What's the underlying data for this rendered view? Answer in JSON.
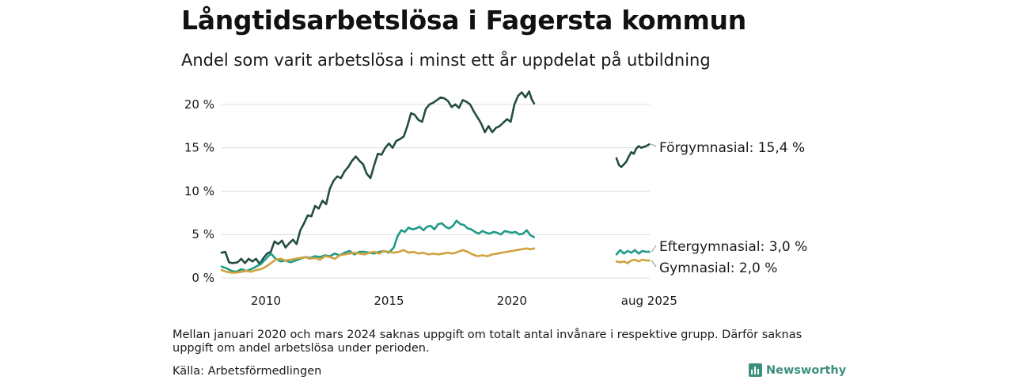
{
  "title": "Långtidsarbetslösa i Fagersta kommun",
  "subtitle": "Andel som varit arbetslösa i minst ett år uppdelat på utbildning",
  "note": "Mellan januari 2020 och mars 2024 saknas uppgift om totalt antal invånare i respektive grupp. Därför saknas uppgift om andel arbetslösa under perioden.",
  "source": "Källa: Arbetsförmedlingen",
  "brand": "Newsworthy",
  "chart_data": {
    "type": "line",
    "title": "Långtidsarbetslösa i Fagersta kommun",
    "subtitle": "Andel som varit arbetslösa i minst ett år uppdelat på utbildning",
    "x_ticks": [
      {
        "label": "2010",
        "t": 2010.0
      },
      {
        "label": "2015",
        "t": 2015.0
      },
      {
        "label": "2020",
        "t": 2020.0
      },
      {
        "label": "aug 2025",
        "t": 2025.58
      }
    ],
    "y_ticks": [
      0,
      5,
      10,
      15,
      20
    ],
    "y_tick_format": "{v} %",
    "ylim": [
      0,
      22
    ],
    "xlim": [
      2008.2,
      2025.6
    ],
    "grid": true,
    "gap": [
      2020.9,
      2024.25
    ],
    "series": [
      {
        "name": "Förgymnasial",
        "label": "Förgymnasial: 15,4 %",
        "color": "#234d43",
        "points": [
          [
            2008.2,
            2.9
          ],
          [
            2008.35,
            3.0
          ],
          [
            2008.5,
            1.8
          ],
          [
            2008.65,
            1.7
          ],
          [
            2008.85,
            1.8
          ],
          [
            2009.0,
            2.2
          ],
          [
            2009.15,
            1.7
          ],
          [
            2009.3,
            2.2
          ],
          [
            2009.45,
            1.9
          ],
          [
            2009.6,
            2.2
          ],
          [
            2009.75,
            1.6
          ],
          [
            2009.9,
            2.3
          ],
          [
            2010.05,
            2.8
          ],
          [
            2010.2,
            3.0
          ],
          [
            2010.35,
            4.2
          ],
          [
            2010.5,
            3.9
          ],
          [
            2010.65,
            4.3
          ],
          [
            2010.8,
            3.5
          ],
          [
            2010.95,
            4.0
          ],
          [
            2011.1,
            4.4
          ],
          [
            2011.25,
            3.9
          ],
          [
            2011.4,
            5.5
          ],
          [
            2011.55,
            6.3
          ],
          [
            2011.7,
            7.2
          ],
          [
            2011.85,
            7.1
          ],
          [
            2012.0,
            8.3
          ],
          [
            2012.15,
            8.0
          ],
          [
            2012.3,
            8.9
          ],
          [
            2012.45,
            8.5
          ],
          [
            2012.6,
            10.3
          ],
          [
            2012.75,
            11.2
          ],
          [
            2012.9,
            11.7
          ],
          [
            2013.05,
            11.5
          ],
          [
            2013.2,
            12.3
          ],
          [
            2013.35,
            12.8
          ],
          [
            2013.5,
            13.5
          ],
          [
            2013.65,
            14.0
          ],
          [
            2013.8,
            13.5
          ],
          [
            2013.95,
            13.1
          ],
          [
            2014.1,
            12.0
          ],
          [
            2014.25,
            11.5
          ],
          [
            2014.4,
            13.0
          ],
          [
            2014.55,
            14.3
          ],
          [
            2014.7,
            14.2
          ],
          [
            2014.85,
            15.0
          ],
          [
            2015.0,
            15.5
          ],
          [
            2015.15,
            15.0
          ],
          [
            2015.3,
            15.8
          ],
          [
            2015.45,
            16.0
          ],
          [
            2015.6,
            16.3
          ],
          [
            2015.75,
            17.5
          ],
          [
            2015.9,
            19.0
          ],
          [
            2016.05,
            18.8
          ],
          [
            2016.2,
            18.2
          ],
          [
            2016.35,
            18.0
          ],
          [
            2016.5,
            19.5
          ],
          [
            2016.65,
            20.0
          ],
          [
            2016.8,
            20.2
          ],
          [
            2016.95,
            20.5
          ],
          [
            2017.1,
            20.8
          ],
          [
            2017.25,
            20.7
          ],
          [
            2017.4,
            20.4
          ],
          [
            2017.55,
            19.7
          ],
          [
            2017.7,
            20.0
          ],
          [
            2017.85,
            19.6
          ],
          [
            2018.0,
            20.5
          ],
          [
            2018.15,
            20.3
          ],
          [
            2018.3,
            20.0
          ],
          [
            2018.45,
            19.2
          ],
          [
            2018.6,
            18.5
          ],
          [
            2018.75,
            17.8
          ],
          [
            2018.9,
            16.8
          ],
          [
            2019.05,
            17.5
          ],
          [
            2019.2,
            16.8
          ],
          [
            2019.35,
            17.3
          ],
          [
            2019.5,
            17.5
          ],
          [
            2019.65,
            17.9
          ],
          [
            2019.8,
            18.3
          ],
          [
            2019.95,
            18.0
          ],
          [
            2020.1,
            20.0
          ],
          [
            2020.25,
            21.0
          ],
          [
            2020.4,
            21.4
          ],
          [
            2020.55,
            20.8
          ],
          [
            2020.7,
            21.5
          ],
          [
            2020.8,
            20.6
          ],
          [
            2020.9,
            20.1
          ]
        ],
        "points_after_gap": [
          [
            2024.25,
            13.8
          ],
          [
            2024.35,
            13.0
          ],
          [
            2024.45,
            12.8
          ],
          [
            2024.55,
            13.1
          ],
          [
            2024.65,
            13.4
          ],
          [
            2024.75,
            14.0
          ],
          [
            2024.85,
            14.5
          ],
          [
            2024.95,
            14.3
          ],
          [
            2025.05,
            14.9
          ],
          [
            2025.15,
            15.2
          ],
          [
            2025.25,
            15.0
          ],
          [
            2025.35,
            15.1
          ],
          [
            2025.45,
            15.2
          ],
          [
            2025.58,
            15.4
          ]
        ]
      },
      {
        "name": "Eftergymnasial",
        "label": "Eftergymnasial:  3,0 %",
        "color": "#1f9a86",
        "points": [
          [
            2008.2,
            1.3
          ],
          [
            2008.4,
            1.1
          ],
          [
            2008.6,
            0.8
          ],
          [
            2008.8,
            0.7
          ],
          [
            2009.0,
            1.0
          ],
          [
            2009.2,
            0.8
          ],
          [
            2009.4,
            1.0
          ],
          [
            2009.6,
            1.3
          ],
          [
            2009.8,
            1.6
          ],
          [
            2010.0,
            2.2
          ],
          [
            2010.2,
            2.8
          ],
          [
            2010.4,
            2.2
          ],
          [
            2010.6,
            1.9
          ],
          [
            2010.8,
            2.0
          ],
          [
            2011.0,
            1.8
          ],
          [
            2011.2,
            2.0
          ],
          [
            2011.4,
            2.2
          ],
          [
            2011.6,
            2.4
          ],
          [
            2011.8,
            2.3
          ],
          [
            2012.0,
            2.5
          ],
          [
            2012.2,
            2.4
          ],
          [
            2012.4,
            2.6
          ],
          [
            2012.6,
            2.5
          ],
          [
            2012.8,
            2.8
          ],
          [
            2013.0,
            2.6
          ],
          [
            2013.2,
            2.9
          ],
          [
            2013.4,
            3.1
          ],
          [
            2013.6,
            2.7
          ],
          [
            2013.8,
            3.0
          ],
          [
            2014.0,
            3.0
          ],
          [
            2014.2,
            2.9
          ],
          [
            2014.4,
            2.8
          ],
          [
            2014.6,
            3.0
          ],
          [
            2014.8,
            3.1
          ],
          [
            2015.0,
            2.9
          ],
          [
            2015.2,
            3.5
          ],
          [
            2015.35,
            4.8
          ],
          [
            2015.5,
            5.5
          ],
          [
            2015.65,
            5.3
          ],
          [
            2015.8,
            5.8
          ],
          [
            2015.95,
            5.6
          ],
          [
            2016.1,
            5.7
          ],
          [
            2016.25,
            5.9
          ],
          [
            2016.4,
            5.5
          ],
          [
            2016.55,
            5.9
          ],
          [
            2016.7,
            6.0
          ],
          [
            2016.85,
            5.6
          ],
          [
            2017.0,
            6.2
          ],
          [
            2017.15,
            6.3
          ],
          [
            2017.3,
            5.9
          ],
          [
            2017.45,
            5.7
          ],
          [
            2017.6,
            6.0
          ],
          [
            2017.75,
            6.6
          ],
          [
            2017.9,
            6.2
          ],
          [
            2018.05,
            6.1
          ],
          [
            2018.2,
            5.7
          ],
          [
            2018.35,
            5.6
          ],
          [
            2018.5,
            5.3
          ],
          [
            2018.65,
            5.1
          ],
          [
            2018.8,
            5.4
          ],
          [
            2018.95,
            5.2
          ],
          [
            2019.1,
            5.1
          ],
          [
            2019.25,
            5.3
          ],
          [
            2019.4,
            5.2
          ],
          [
            2019.55,
            5.0
          ],
          [
            2019.7,
            5.4
          ],
          [
            2019.85,
            5.3
          ],
          [
            2020.0,
            5.2
          ],
          [
            2020.15,
            5.3
          ],
          [
            2020.3,
            5.0
          ],
          [
            2020.45,
            5.1
          ],
          [
            2020.6,
            5.5
          ],
          [
            2020.75,
            4.9
          ],
          [
            2020.9,
            4.7
          ]
        ],
        "points_after_gap": [
          [
            2024.25,
            2.7
          ],
          [
            2024.4,
            3.2
          ],
          [
            2024.55,
            2.8
          ],
          [
            2024.7,
            3.1
          ],
          [
            2024.85,
            2.9
          ],
          [
            2025.0,
            3.2
          ],
          [
            2025.15,
            2.8
          ],
          [
            2025.3,
            3.1
          ],
          [
            2025.45,
            3.0
          ],
          [
            2025.58,
            3.0
          ]
        ]
      },
      {
        "name": "Gymnasial",
        "label": "Gymnasial:  2,0 %",
        "color": "#d0a240",
        "points": [
          [
            2008.2,
            0.9
          ],
          [
            2008.4,
            0.7
          ],
          [
            2008.6,
            0.6
          ],
          [
            2008.8,
            0.6
          ],
          [
            2009.0,
            0.7
          ],
          [
            2009.2,
            0.8
          ],
          [
            2009.4,
            0.7
          ],
          [
            2009.6,
            0.9
          ],
          [
            2009.8,
            1.0
          ],
          [
            2010.0,
            1.3
          ],
          [
            2010.2,
            1.7
          ],
          [
            2010.4,
            2.1
          ],
          [
            2010.6,
            2.2
          ],
          [
            2010.8,
            2.0
          ],
          [
            2011.0,
            2.1
          ],
          [
            2011.2,
            2.2
          ],
          [
            2011.4,
            2.3
          ],
          [
            2011.6,
            2.4
          ],
          [
            2011.8,
            2.2
          ],
          [
            2012.0,
            2.3
          ],
          [
            2012.2,
            2.1
          ],
          [
            2012.4,
            2.5
          ],
          [
            2012.6,
            2.4
          ],
          [
            2012.8,
            2.2
          ],
          [
            2013.0,
            2.6
          ],
          [
            2013.2,
            2.7
          ],
          [
            2013.4,
            2.8
          ],
          [
            2013.6,
            2.9
          ],
          [
            2013.8,
            2.8
          ],
          [
            2014.0,
            2.7
          ],
          [
            2014.2,
            2.9
          ],
          [
            2014.4,
            3.0
          ],
          [
            2014.6,
            2.8
          ],
          [
            2014.8,
            3.1
          ],
          [
            2015.0,
            3.0
          ],
          [
            2015.2,
            2.9
          ],
          [
            2015.4,
            3.0
          ],
          [
            2015.6,
            3.2
          ],
          [
            2015.8,
            2.9
          ],
          [
            2016.0,
            3.0
          ],
          [
            2016.2,
            2.8
          ],
          [
            2016.4,
            2.9
          ],
          [
            2016.6,
            2.7
          ],
          [
            2016.8,
            2.8
          ],
          [
            2017.0,
            2.7
          ],
          [
            2017.2,
            2.8
          ],
          [
            2017.4,
            2.9
          ],
          [
            2017.6,
            2.8
          ],
          [
            2017.8,
            3.0
          ],
          [
            2018.0,
            3.2
          ],
          [
            2018.2,
            3.0
          ],
          [
            2018.4,
            2.7
          ],
          [
            2018.6,
            2.5
          ],
          [
            2018.8,
            2.6
          ],
          [
            2019.0,
            2.5
          ],
          [
            2019.2,
            2.7
          ],
          [
            2019.4,
            2.8
          ],
          [
            2019.6,
            2.9
          ],
          [
            2019.8,
            3.0
          ],
          [
            2020.0,
            3.1
          ],
          [
            2020.2,
            3.2
          ],
          [
            2020.4,
            3.3
          ],
          [
            2020.6,
            3.4
          ],
          [
            2020.75,
            3.3
          ],
          [
            2020.9,
            3.4
          ]
        ],
        "points_after_gap": [
          [
            2024.25,
            1.9
          ],
          [
            2024.4,
            1.8
          ],
          [
            2024.55,
            1.9
          ],
          [
            2024.7,
            1.7
          ],
          [
            2024.85,
            2.0
          ],
          [
            2025.0,
            2.1
          ],
          [
            2025.15,
            1.9
          ],
          [
            2025.3,
            2.1
          ],
          [
            2025.45,
            2.0
          ],
          [
            2025.58,
            2.0
          ]
        ]
      }
    ]
  }
}
